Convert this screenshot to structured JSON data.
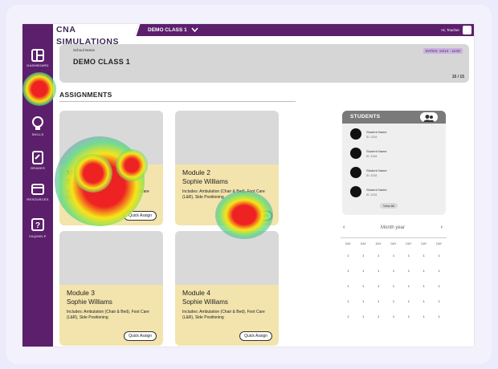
{
  "app": {
    "brand": "CNA SIMULATIONS",
    "class_selector": "DEMO CLASS 1",
    "greeting": "Hi, Teacher"
  },
  "sidebar": {
    "items": [
      {
        "label": "DASHBOARD",
        "icon": "dashboard-icon"
      },
      {
        "label": "",
        "icon": "classes-icon"
      },
      {
        "label": "SKILLS",
        "icon": "skills-icon"
      },
      {
        "label": "GRADES",
        "icon": "grades-icon"
      },
      {
        "label": "RESOURCES",
        "icon": "resources-icon"
      },
      {
        "label": "FAQ/HELP",
        "icon": "help-icon"
      }
    ]
  },
  "banner": {
    "school_label": "School Name",
    "class_name": "DEMO CLASS 1",
    "dates": "DATES: 10/13 - 11/30",
    "count": "15 / 15"
  },
  "assignments": {
    "title": "ASSIGNMENTS",
    "cards": [
      {
        "title": "Module 1",
        "teacher": "Sophie Williams",
        "description": "Includes: Ambulation (Chair & Bed), Foot Care (L&R), Side Positioning",
        "button": "Quick Assign"
      },
      {
        "title": "Module 2",
        "teacher": "Sophie Williams",
        "description": "Includes: Ambulation (Chair & Bed), Foot Care (L&R), Side Positioning",
        "button": "Quick Assign"
      },
      {
        "title": "Module 3",
        "teacher": "Sophie Williams",
        "description": "Includes: Ambulation (Chair & Bed), Foot Care (L&R), Side Positioning",
        "button": "Quick Assign"
      },
      {
        "title": "Module 4",
        "teacher": "Sophie Williams",
        "description": "Includes: Ambulation (Chair & Bed), Foot Care (L&R), Side Positioning",
        "button": "Quick Assign"
      }
    ]
  },
  "students": {
    "title": "STUDENTS",
    "list": [
      {
        "name": "Student Name",
        "id": "ID: 1234"
      },
      {
        "name": "Student Name",
        "id": "ID: 1234"
      },
      {
        "name": "Student Name",
        "id": "ID: 1234"
      },
      {
        "name": "Student Name",
        "id": "ID: 1234"
      }
    ],
    "view_all": "View All"
  },
  "calendar": {
    "prev": "‹",
    "next": "›",
    "month_label": "Month year",
    "day_headers": [
      "DAY",
      "DAY",
      "DAY",
      "DAY",
      "DAY",
      "DAY",
      "DAY"
    ],
    "weeks": [
      [
        "1",
        "1",
        "1",
        "1",
        "1",
        "1",
        "1"
      ],
      [
        "1",
        "1",
        "1",
        "1",
        "1",
        "1",
        "1"
      ],
      [
        "1",
        "1",
        "1",
        "1",
        "1",
        "1",
        "1"
      ],
      [
        "1",
        "1",
        "1",
        "1",
        "1",
        "1",
        "1"
      ],
      [
        "1",
        "1",
        "1",
        "1",
        "1",
        "1",
        "1"
      ]
    ]
  },
  "colors": {
    "sidebar": "#5b1f6c",
    "card_body": "#f3e4ad",
    "placeholder": "#d9d9d9",
    "heat_core": "#e02020"
  }
}
